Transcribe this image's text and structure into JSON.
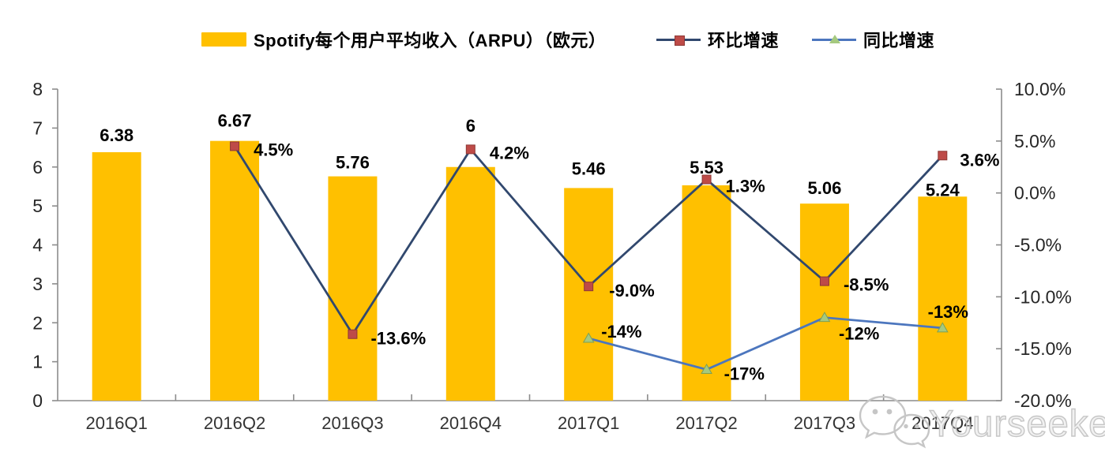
{
  "legend": {
    "items": [
      {
        "label": "Spotify每个用户平均收入（ARPU）（欧元）",
        "swatch": "bar"
      },
      {
        "label": "环比增速",
        "swatch": "line-square"
      },
      {
        "label": "同比增速",
        "swatch": "line-triangle"
      }
    ]
  },
  "watermark": {
    "text": "Yourseeker",
    "icon": "wechat-icon"
  },
  "colors": {
    "bar": "#FFC000",
    "qoq_line": "#31486E",
    "qoq_marker": "#BE4B48",
    "qoq_marker_edge": "#8E3835",
    "yoy_line": "#4C76BE",
    "yoy_marker": "#A5C97F",
    "yoy_marker_edge": "#7DA053",
    "axis": "#8C8C8C",
    "tick_text": "#262626",
    "category_text": "#333333",
    "data_label": "#000000",
    "watermark": "#C6C6C6"
  },
  "chart_data": {
    "type": "bar+line combo",
    "title": "",
    "categories": [
      "2016Q1",
      "2016Q2",
      "2016Q3",
      "2016Q4",
      "2017Q1",
      "2017Q2",
      "2017Q3",
      "2017Q4"
    ],
    "series": [
      {
        "name": "Spotify每个用户平均收入（ARPU）（欧元）",
        "type": "bar",
        "axis": "left",
        "values": [
          6.38,
          6.67,
          5.76,
          6,
          5.46,
          5.53,
          5.06,
          5.24
        ],
        "labels": [
          "6.38",
          "6.67",
          "5.76",
          "6",
          "5.46",
          "5.53",
          "5.06",
          "5.24"
        ]
      },
      {
        "name": "环比增速",
        "type": "line",
        "marker": "square",
        "axis": "right",
        "values": [
          null,
          4.5,
          -13.6,
          4.2,
          -9.0,
          1.3,
          -8.5,
          3.6
        ],
        "labels": [
          null,
          "4.5%",
          "-13.6%",
          "4.2%",
          "-9.0%",
          "1.3%",
          "-8.5%",
          "3.6%"
        ]
      },
      {
        "name": "同比增速",
        "type": "line",
        "marker": "triangle",
        "axis": "right",
        "values": [
          null,
          null,
          null,
          null,
          -14,
          -17,
          -12,
          -13
        ],
        "labels": [
          null,
          null,
          null,
          null,
          "-14%",
          "-17%",
          "-12%",
          "-13%"
        ]
      }
    ],
    "left_axis": {
      "min": 0,
      "max": 8,
      "step": 1,
      "tick_values": [
        0,
        1,
        2,
        3,
        4,
        5,
        6,
        7,
        8
      ],
      "tick_labels": [
        "0",
        "1",
        "2",
        "3",
        "4",
        "5",
        "6",
        "7",
        "8"
      ]
    },
    "right_axis": {
      "min": -20,
      "max": 10,
      "step": 5,
      "tick_values": [
        10,
        5,
        0,
        -5,
        -10,
        -15,
        -20
      ],
      "tick_labels": [
        "10.0%",
        "5.0%",
        "0.0%",
        "-5.0%",
        "-10.0%",
        "-15.0%",
        "-20.0%"
      ]
    },
    "grid": false,
    "legend_position": "top"
  }
}
